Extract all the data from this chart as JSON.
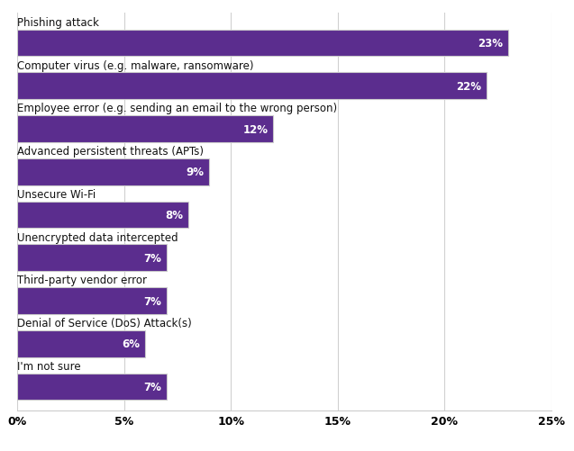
{
  "categories": [
    "Phishing attack",
    "Computer virus (e.g. malware, ransomware)",
    "Employee error (e.g. sending an email to the wrong person)",
    "Advanced persistent threats (APTs)",
    "Unsecure Wi-Fi",
    "Unencrypted data intercepted",
    "Third-party vendor error",
    "Denial of Service (DoS) Attack(s)",
    "I'm not sure"
  ],
  "values": [
    23,
    22,
    12,
    9,
    8,
    7,
    7,
    6,
    7
  ],
  "bar_color": "#5B2D8E",
  "label_color": "#ffffff",
  "text_color": "#111111",
  "background_color": "#ffffff",
  "border_color": "#cccccc",
  "xlim": [
    0,
    25
  ],
  "xticks": [
    0,
    5,
    10,
    15,
    20,
    25
  ],
  "xtick_labels": [
    "0%",
    "5%",
    "10%",
    "15%",
    "20%",
    "25%"
  ],
  "bar_height": 0.62,
  "label_fontsize": 8.5,
  "tick_fontsize": 9,
  "category_fontsize": 8.5,
  "figsize": [
    6.37,
    5.02
  ],
  "dpi": 100
}
